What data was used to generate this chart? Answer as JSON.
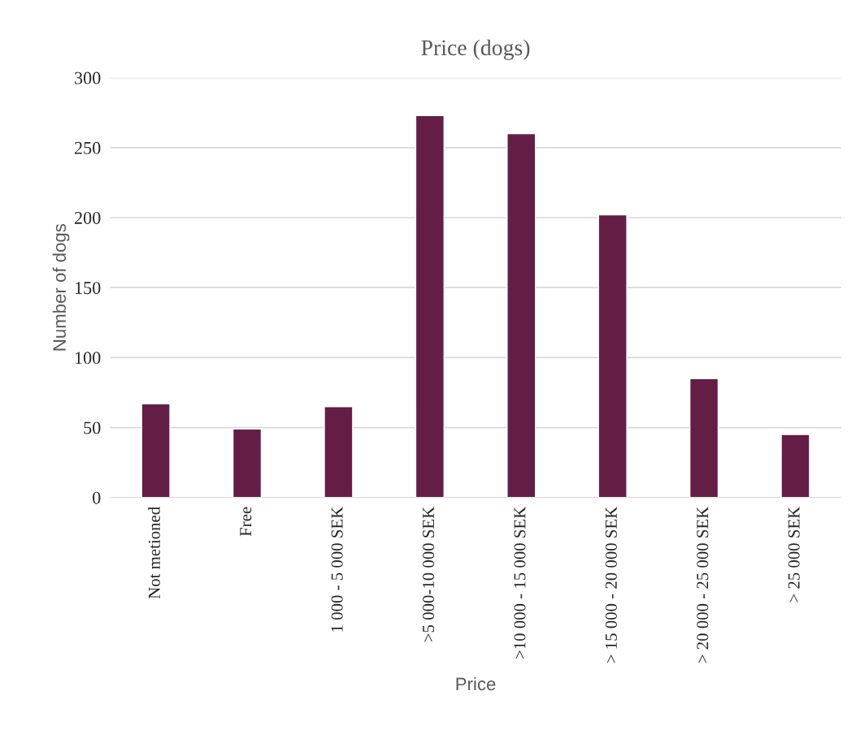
{
  "chart_data": {
    "type": "bar",
    "title": "Price (dogs)",
    "xlabel": "Price",
    "ylabel": "Number of dogs",
    "categories": [
      "Not metioned",
      "Free",
      "1 000 - 5 000 SEK",
      ">5 000-10 000 SEK",
      ">10 000 - 15 000 SEK",
      "> 15 000 - 20 000 SEK",
      "> 20 000 - 25 000 SEK",
      "> 25 000 SEK"
    ],
    "values": [
      67,
      49,
      65,
      273,
      260,
      202,
      85,
      45
    ],
    "color": "#641e45",
    "ylim": [
      0,
      300
    ],
    "yticks": [
      0,
      50,
      100,
      150,
      200,
      250,
      300
    ],
    "grid": "y"
  }
}
